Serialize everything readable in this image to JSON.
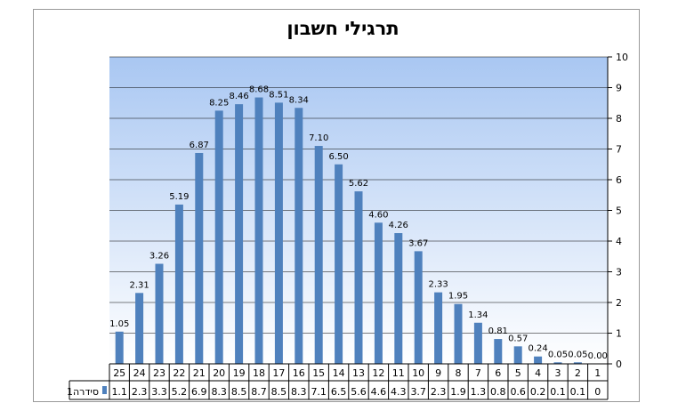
{
  "chart_data": {
    "type": "bar",
    "title": "תרגילי חשבון",
    "categories": [
      "1",
      "2",
      "3",
      "4",
      "5",
      "6",
      "7",
      "8",
      "9",
      "10",
      "11",
      "12",
      "13",
      "14",
      "15",
      "16",
      "17",
      "18",
      "19",
      "20",
      "21",
      "22",
      "23",
      "24",
      "25"
    ],
    "series": [
      {
        "name": "סידרה1",
        "values": [
          0.0,
          0.05,
          0.05,
          0.24,
          0.57,
          0.81,
          1.34,
          1.95,
          2.33,
          3.67,
          4.26,
          4.6,
          5.62,
          6.5,
          7.1,
          8.34,
          8.51,
          8.68,
          8.46,
          8.25,
          6.87,
          5.19,
          3.26,
          2.31,
          1.05
        ],
        "data_labels": [
          "0.00",
          "0.05",
          "0.05",
          "0.24",
          "0.57",
          "0.81",
          "1.34",
          "1.95",
          "2.33",
          "3.67",
          "4.26",
          "4.60",
          "5.62",
          "6.50",
          "7.10",
          "8.34",
          "8.51",
          "8.68",
          "8.46",
          "8.25",
          "6.87",
          "5.19",
          "3.26",
          "2.31",
          "1.05"
        ],
        "table_values": [
          "0",
          "0.1",
          "0.1",
          "0.2",
          "0.6",
          "0.8",
          "1.3",
          "1.9",
          "2.3",
          "3.7",
          "4.3",
          "4.6",
          "5.6",
          "6.5",
          "7.1",
          "8.3",
          "8.5",
          "8.7",
          "8.5",
          "8.3",
          "6.9",
          "5.2",
          "3.3",
          "2.3",
          "1.1"
        ],
        "color": "#4f81bd"
      }
    ],
    "yaxis": {
      "ticks": [
        "0",
        "1",
        "2",
        "3",
        "4",
        "5",
        "6",
        "7",
        "8",
        "9",
        "10"
      ],
      "min": 0,
      "max": 10,
      "position": "right"
    },
    "x_reversed": true,
    "grid": true,
    "data_table": true,
    "gradient_colors": [
      "#a9c7f2",
      "#ffffff"
    ]
  }
}
